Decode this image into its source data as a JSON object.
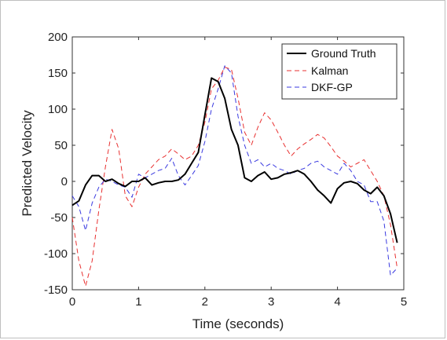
{
  "chart_data": {
    "type": "line",
    "title": "",
    "xlabel": "Time (seconds)",
    "ylabel": "Predicted Velocity",
    "xlim": [
      0,
      5
    ],
    "ylim": [
      -150,
      200
    ],
    "xticks": [
      0,
      1,
      2,
      3,
      4,
      5
    ],
    "yticks": [
      -150,
      -100,
      -50,
      0,
      50,
      100,
      150,
      200
    ],
    "grid": false,
    "legend_position": "top-right",
    "series": [
      {
        "name": "Ground Truth",
        "color": "#000000",
        "style": "solid",
        "x": [
          0,
          0.1,
          0.2,
          0.3,
          0.4,
          0.5,
          0.6,
          0.7,
          0.8,
          0.9,
          1.0,
          1.1,
          1.2,
          1.3,
          1.4,
          1.5,
          1.6,
          1.7,
          1.8,
          1.9,
          2.0,
          2.1,
          2.2,
          2.3,
          2.4,
          2.5,
          2.6,
          2.7,
          2.8,
          2.9,
          3.0,
          3.1,
          3.2,
          3.3,
          3.4,
          3.5,
          3.6,
          3.7,
          3.8,
          3.9,
          4.0,
          4.1,
          4.2,
          4.3,
          4.4,
          4.5,
          4.6,
          4.7,
          4.8,
          4.9
        ],
        "y": [
          -33,
          -27,
          -5,
          8,
          8,
          0,
          3,
          -3,
          -7,
          0,
          0,
          5,
          -5,
          -2,
          0,
          0,
          2,
          10,
          25,
          40,
          92,
          143,
          138,
          115,
          72,
          50,
          5,
          0,
          8,
          13,
          3,
          5,
          10,
          12,
          15,
          10,
          0,
          -12,
          -20,
          -30,
          -10,
          -2,
          0,
          -3,
          -12,
          -17,
          -8,
          -20,
          -45,
          -85
        ]
      },
      {
        "name": "Kalman",
        "color": "#e83030",
        "style": "dashed",
        "x": [
          0,
          0.1,
          0.2,
          0.3,
          0.4,
          0.5,
          0.6,
          0.7,
          0.8,
          0.9,
          1.0,
          1.1,
          1.2,
          1.3,
          1.4,
          1.5,
          1.6,
          1.7,
          1.8,
          1.9,
          2.0,
          2.1,
          2.2,
          2.3,
          2.4,
          2.5,
          2.6,
          2.7,
          2.8,
          2.9,
          3.0,
          3.1,
          3.2,
          3.3,
          3.4,
          3.5,
          3.6,
          3.7,
          3.8,
          3.9,
          4.0,
          4.1,
          4.2,
          4.3,
          4.4,
          4.5,
          4.6,
          4.7,
          4.8,
          4.9
        ],
        "y": [
          -50,
          -110,
          -145,
          -110,
          -40,
          20,
          72,
          45,
          -20,
          -35,
          -8,
          10,
          20,
          30,
          35,
          45,
          38,
          30,
          35,
          50,
          82,
          128,
          140,
          158,
          155,
          115,
          68,
          50,
          75,
          95,
          85,
          68,
          50,
          35,
          45,
          52,
          58,
          65,
          60,
          48,
          35,
          28,
          20,
          25,
          30,
          15,
          0,
          -20,
          -60,
          -120
        ]
      },
      {
        "name": "DKF-GP",
        "color": "#3a3ae0",
        "style": "dashed",
        "x": [
          0,
          0.1,
          0.2,
          0.3,
          0.4,
          0.5,
          0.6,
          0.7,
          0.8,
          0.9,
          1.0,
          1.1,
          1.2,
          1.3,
          1.4,
          1.5,
          1.6,
          1.7,
          1.8,
          1.9,
          2.0,
          2.1,
          2.2,
          2.3,
          2.4,
          2.5,
          2.6,
          2.7,
          2.8,
          2.9,
          3.0,
          3.1,
          3.2,
          3.3,
          3.4,
          3.5,
          3.6,
          3.7,
          3.8,
          3.9,
          4.0,
          4.1,
          4.2,
          4.3,
          4.4,
          4.5,
          4.6,
          4.7,
          4.8,
          4.9
        ],
        "y": [
          -20,
          -35,
          -68,
          -30,
          -8,
          3,
          0,
          -5,
          -8,
          -22,
          10,
          5,
          10,
          15,
          18,
          32,
          8,
          -5,
          8,
          22,
          55,
          100,
          128,
          160,
          150,
          90,
          50,
          25,
          30,
          20,
          25,
          18,
          15,
          10,
          15,
          18,
          25,
          28,
          20,
          15,
          10,
          25,
          15,
          0,
          -5,
          -28,
          -28,
          -55,
          -130,
          -120
        ]
      }
    ]
  }
}
